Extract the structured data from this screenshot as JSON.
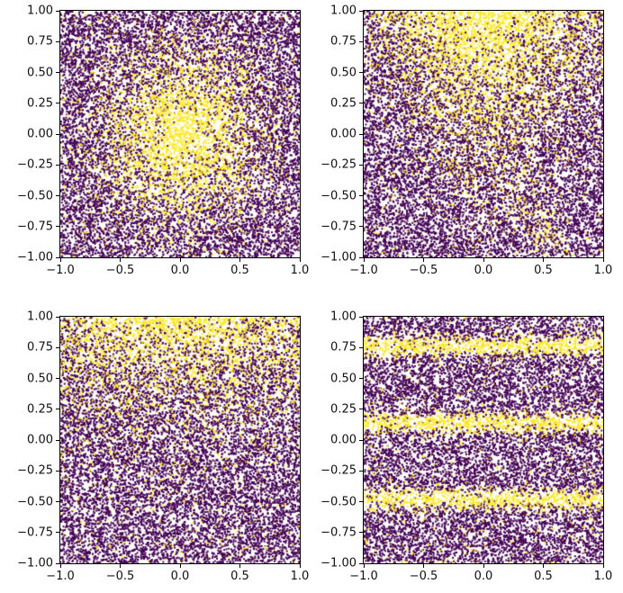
{
  "figure": {
    "background": "#ffffff",
    "spine_color": "#000000",
    "tick_color": "#000000",
    "tick_label_fontsize_px": 13
  },
  "chart_data": [
    {
      "id": "top-left",
      "type": "scatter",
      "pattern": "radial-center-blob",
      "seed": 101,
      "n_points": 14000,
      "marker_size_px": 2,
      "xlim": [
        -1.0,
        1.0
      ],
      "ylim": [
        -1.0,
        1.0
      ],
      "xtick_labels": [
        "−1.0",
        "−0.5",
        "0.0",
        "0.5",
        "1.0"
      ],
      "ytick_labels": [
        "1.00",
        "0.75",
        "0.50",
        "0.25",
        "0.00",
        "−0.25",
        "−0.50",
        "−0.75",
        "−1.00"
      ],
      "class_colors": {
        "negative": "#440154",
        "positive": "#fde725"
      },
      "description": "Uniform random points on [-1,1]^2; yellow-class probability is a Gaussian blob centered at the origin, purple elsewhere"
    },
    {
      "id": "top-right",
      "type": "scatter",
      "pattern": "top-cone",
      "seed": 202,
      "n_points": 14000,
      "marker_size_px": 2,
      "xlim": [
        -1.0,
        1.0
      ],
      "ylim": [
        -1.0,
        1.0
      ],
      "xtick_labels": [
        "−1.0",
        "−0.5",
        "0.0",
        "0.5",
        "1.0"
      ],
      "ytick_labels": [
        "1.00",
        "0.75",
        "0.50",
        "0.25",
        "0.00",
        "−0.25",
        "−0.50",
        "−0.75",
        "−1.00"
      ],
      "class_colors": {
        "negative": "#440154",
        "positive": "#fde725"
      },
      "description": "Uniform random points; yellow class forms a cone widening toward the top center with a faint diagonal streak toward the lower right"
    },
    {
      "id": "bottom-left",
      "type": "scatter",
      "pattern": "top-band",
      "seed": 303,
      "n_points": 14000,
      "marker_size_px": 2,
      "xlim": [
        -1.0,
        1.0
      ],
      "ylim": [
        -1.0,
        1.0
      ],
      "xtick_labels": [
        "−1.0",
        "−0.5",
        "0.0",
        "0.5",
        "1.0"
      ],
      "ytick_labels": [
        "1.00",
        "0.75",
        "0.50",
        "0.25",
        "0.00",
        "−0.25",
        "−0.50",
        "−0.75",
        "−1.00"
      ],
      "class_colors": {
        "negative": "#440154",
        "positive": "#fde725"
      },
      "description": "Uniform random points; yellow class density increases toward the top edge, densest near top center"
    },
    {
      "id": "bottom-right",
      "type": "scatter",
      "pattern": "horizontal-stripes",
      "seed": 404,
      "n_points": 14000,
      "marker_size_px": 2,
      "xlim": [
        -1.0,
        1.0
      ],
      "ylim": [
        -1.0,
        1.0
      ],
      "xtick_labels": [
        "−1.0",
        "−0.5",
        "0.0",
        "0.5",
        "1.0"
      ],
      "ytick_labels": [
        "1.00",
        "0.75",
        "0.50",
        "0.25",
        "0.00",
        "−0.25",
        "−0.50",
        "−0.75",
        "−1.00"
      ],
      "class_colors": {
        "negative": "#440154",
        "positive": "#fde725"
      },
      "description": "Uniform random points; yellow class forms periodic horizontal bands near y ≈ 0.76, 0.14, −0.48 (and grazing the bottom edge)"
    }
  ]
}
